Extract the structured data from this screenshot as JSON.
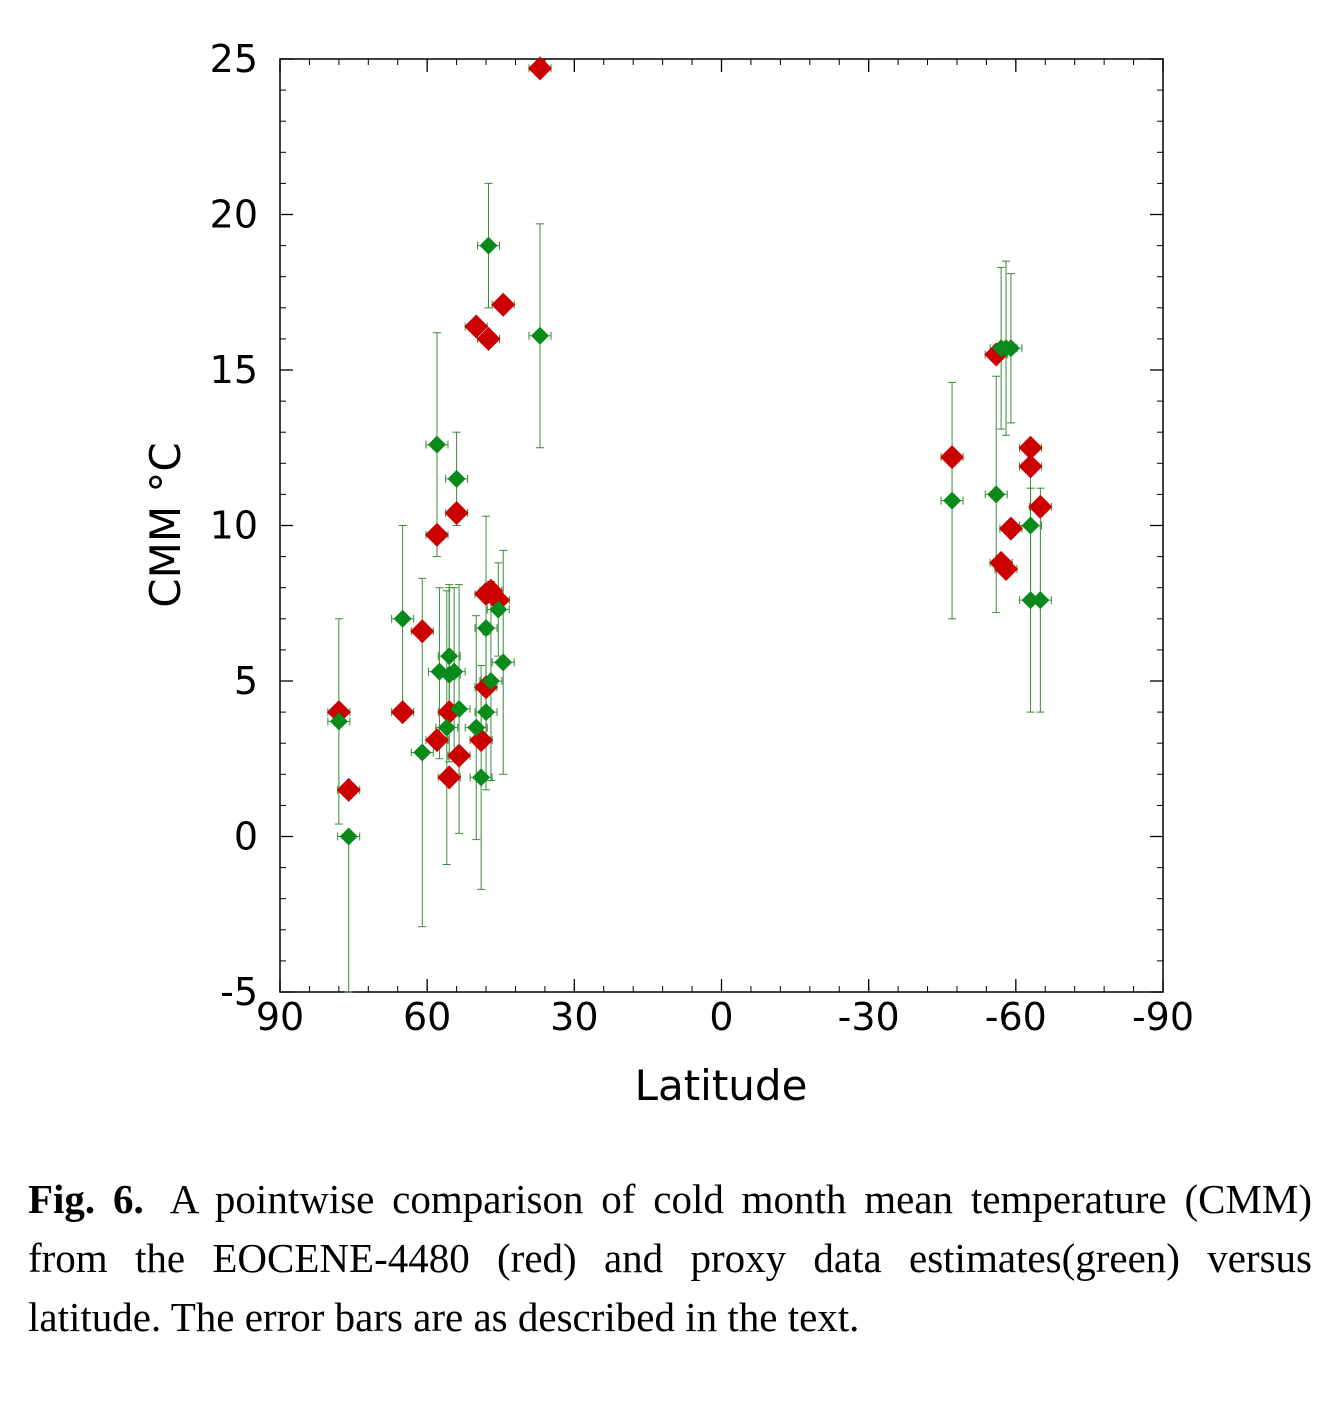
{
  "chart_data": {
    "type": "scatter",
    "xlabel": "Latitude",
    "ylabel": "CMM °C",
    "xlim": [
      90,
      -90
    ],
    "ylim": [
      -5,
      25
    ],
    "xticks": [
      90,
      60,
      30,
      0,
      -30,
      -60,
      -90
    ],
    "yticks": [
      -5,
      0,
      5,
      10,
      15,
      20,
      25
    ],
    "grid": false,
    "legend": "none",
    "colors": {
      "model": "#cc0000",
      "proxy": "#0a8a1a",
      "errorbar": "#3a8a3a"
    },
    "series": [
      {
        "color": "#cc0000",
        "marker": "diamond",
        "points": [
          {
            "x": 78,
            "y": 4.0
          },
          {
            "x": 76,
            "y": 1.5
          },
          {
            "x": 65,
            "y": 4.0
          },
          {
            "x": 61,
            "y": 6.6
          },
          {
            "x": 58,
            "y": 9.7
          },
          {
            "x": 58,
            "y": 3.1
          },
          {
            "x": 55.5,
            "y": 4.0
          },
          {
            "x": 55.5,
            "y": 1.9
          },
          {
            "x": 54,
            "y": 10.4
          },
          {
            "x": 53.5,
            "y": 2.6
          },
          {
            "x": 50,
            "y": 16.4
          },
          {
            "x": 49,
            "y": 3.1
          },
          {
            "x": 48,
            "y": 4.8
          },
          {
            "x": 48,
            "y": 7.8
          },
          {
            "x": 47.5,
            "y": 16.0
          },
          {
            "x": 47,
            "y": 7.9
          },
          {
            "x": 45.5,
            "y": 7.6
          },
          {
            "x": 44.5,
            "y": 17.1
          },
          {
            "x": 37,
            "y": 24.7
          },
          {
            "x": -47,
            "y": 12.2
          },
          {
            "x": -56,
            "y": 15.5
          },
          {
            "x": -57,
            "y": 8.8
          },
          {
            "x": -58,
            "y": 8.6
          },
          {
            "x": -59,
            "y": 9.9
          },
          {
            "x": -63,
            "y": 12.5
          },
          {
            "x": -63,
            "y": 11.9
          },
          {
            "x": -65,
            "y": 10.6
          }
        ]
      },
      {
        "color": "#0a8a1a",
        "marker": "diamond",
        "points": [
          {
            "x": 78,
            "y": 3.7,
            "ylo": 0.4,
            "yhi": 7.0
          },
          {
            "x": 76,
            "y": 0.0,
            "ylo": -5.0,
            "yhi": 0.0
          },
          {
            "x": 65,
            "y": 7.0,
            "ylo": 4.0,
            "yhi": 10.0
          },
          {
            "x": 61,
            "y": 2.7,
            "ylo": -2.9,
            "yhi": 8.3
          },
          {
            "x": 58,
            "y": 12.6,
            "ylo": 9.0,
            "yhi": 16.2
          },
          {
            "x": 57.5,
            "y": 5.3,
            "ylo": 2.5,
            "yhi": 8.0
          },
          {
            "x": 56,
            "y": 3.5,
            "ylo": -0.9,
            "yhi": 7.9
          },
          {
            "x": 55.5,
            "y": 5.8,
            "ylo": 3.5,
            "yhi": 8.1
          },
          {
            "x": 55.5,
            "y": 5.2,
            "ylo": 2.4,
            "yhi": 8.0
          },
          {
            "x": 54.5,
            "y": 5.3,
            "ylo": 2.6,
            "yhi": 8.0
          },
          {
            "x": 54,
            "y": 11.5,
            "ylo": 10.0,
            "yhi": 13.0
          },
          {
            "x": 53.5,
            "y": 4.1,
            "ylo": 0.1,
            "yhi": 8.1
          },
          {
            "x": 50,
            "y": 3.5,
            "ylo": -0.1,
            "yhi": 7.1
          },
          {
            "x": 49,
            "y": 1.9,
            "ylo": -1.7,
            "yhi": 5.5
          },
          {
            "x": 48,
            "y": 6.7,
            "ylo": 3.1,
            "yhi": 10.3
          },
          {
            "x": 48,
            "y": 4.0,
            "ylo": 1.5,
            "yhi": 6.5
          },
          {
            "x": 47.5,
            "y": 19.0,
            "ylo": 17.0,
            "yhi": 21.0
          },
          {
            "x": 47,
            "y": 5.0,
            "ylo": 1.8,
            "yhi": 8.2
          },
          {
            "x": 45.5,
            "y": 7.3,
            "ylo": 5.8,
            "yhi": 8.8
          },
          {
            "x": 44.5,
            "y": 5.6,
            "ylo": 2.0,
            "yhi": 9.2
          },
          {
            "x": 37,
            "y": 16.1,
            "ylo": 12.5,
            "yhi": 19.7
          },
          {
            "x": -47,
            "y": 10.8,
            "ylo": 7.0,
            "yhi": 14.6
          },
          {
            "x": -56,
            "y": 11.0,
            "ylo": 7.2,
            "yhi": 14.8
          },
          {
            "x": -57,
            "y": 15.7,
            "ylo": 13.1,
            "yhi": 18.3
          },
          {
            "x": -58,
            "y": 15.7,
            "ylo": 12.9,
            "yhi": 18.5
          },
          {
            "x": -59,
            "y": 15.7,
            "ylo": 13.3,
            "yhi": 18.1
          },
          {
            "x": -63,
            "y": 10.0,
            "ylo": 7.6,
            "yhi": 12.4
          },
          {
            "x": -63,
            "y": 7.6,
            "ylo": 4.0,
            "yhi": 11.2
          },
          {
            "x": -65,
            "y": 7.6,
            "ylo": 4.0,
            "yhi": 11.2
          }
        ]
      }
    ]
  },
  "caption": {
    "label": "Fig. 6.",
    "text": "A pointwise comparison of cold month mean temperature (CMM) from the EOCENE-4480 (red) and proxy data estimates(green) versus latitude. The error bars are as described in the text."
  }
}
